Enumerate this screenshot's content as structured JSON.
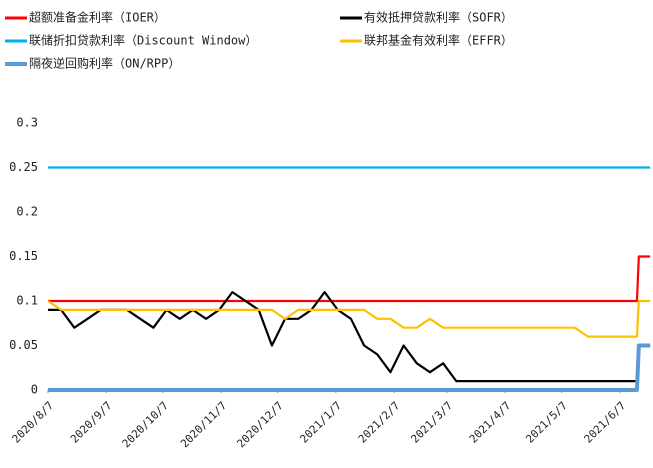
{
  "chart_data": {
    "type": "line",
    "x": [
      "2020/8/7",
      "2020/8/14",
      "2020/8/21",
      "2020/8/28",
      "2020/9/4",
      "2020/9/11",
      "2020/9/18",
      "2020/9/25",
      "2020/10/2",
      "2020/10/9",
      "2020/10/16",
      "2020/10/23",
      "2020/10/30",
      "2020/11/6",
      "2020/11/13",
      "2020/11/20",
      "2020/11/27",
      "2020/12/4",
      "2020/12/11",
      "2020/12/18",
      "2020/12/25",
      "2021/1/1",
      "2021/1/8",
      "2021/1/15",
      "2021/1/22",
      "2021/1/29",
      "2021/2/5",
      "2021/2/12",
      "2021/2/19",
      "2021/2/26",
      "2021/3/5",
      "2021/3/12",
      "2021/3/19",
      "2021/3/26",
      "2021/4/2",
      "2021/4/9",
      "2021/4/16",
      "2021/4/23",
      "2021/4/30",
      "2021/5/7",
      "2021/5/14",
      "2021/5/21",
      "2021/5/28",
      "2021/6/4",
      "2021/6/11",
      "2021/6/16",
      "2021/6/17",
      "2021/6/23"
    ],
    "series": [
      {
        "name": "超额准备金利率（IOER）",
        "color": "#ff0000",
        "values": [
          0.1,
          0.1,
          0.1,
          0.1,
          0.1,
          0.1,
          0.1,
          0.1,
          0.1,
          0.1,
          0.1,
          0.1,
          0.1,
          0.1,
          0.1,
          0.1,
          0.1,
          0.1,
          0.1,
          0.1,
          0.1,
          0.1,
          0.1,
          0.1,
          0.1,
          0.1,
          0.1,
          0.1,
          0.1,
          0.1,
          0.1,
          0.1,
          0.1,
          0.1,
          0.1,
          0.1,
          0.1,
          0.1,
          0.1,
          0.1,
          0.1,
          0.1,
          0.1,
          0.1,
          0.1,
          0.1,
          0.15,
          0.15
        ]
      },
      {
        "name": "有效抵押贷款利率（SOFR）",
        "color": "#000000",
        "values": [
          0.09,
          0.09,
          0.07,
          0.08,
          0.09,
          0.09,
          0.09,
          0.08,
          0.07,
          0.09,
          0.08,
          0.09,
          0.08,
          0.09,
          0.11,
          0.1,
          0.09,
          0.05,
          0.08,
          0.08,
          0.09,
          0.11,
          0.09,
          0.08,
          0.05,
          0.04,
          0.02,
          0.05,
          0.03,
          0.02,
          0.03,
          0.01,
          0.01,
          0.01,
          0.01,
          0.01,
          0.01,
          0.01,
          0.01,
          0.01,
          0.01,
          0.01,
          0.01,
          0.01,
          0.01,
          0.01,
          0.05,
          0.05
        ]
      },
      {
        "name": "联储折扣贷款利率（Discount Window）",
        "color": "#00b0f0",
        "values": [
          0.25,
          0.25,
          0.25,
          0.25,
          0.25,
          0.25,
          0.25,
          0.25,
          0.25,
          0.25,
          0.25,
          0.25,
          0.25,
          0.25,
          0.25,
          0.25,
          0.25,
          0.25,
          0.25,
          0.25,
          0.25,
          0.25,
          0.25,
          0.25,
          0.25,
          0.25,
          0.25,
          0.25,
          0.25,
          0.25,
          0.25,
          0.25,
          0.25,
          0.25,
          0.25,
          0.25,
          0.25,
          0.25,
          0.25,
          0.25,
          0.25,
          0.25,
          0.25,
          0.25,
          0.25,
          0.25,
          0.25,
          0.25
        ]
      },
      {
        "name": "联邦基金有效利率（EFFR）",
        "color": "#ffc000",
        "values": [
          0.1,
          0.09,
          0.09,
          0.09,
          0.09,
          0.09,
          0.09,
          0.09,
          0.09,
          0.09,
          0.09,
          0.09,
          0.09,
          0.09,
          0.09,
          0.09,
          0.09,
          0.09,
          0.08,
          0.09,
          0.09,
          0.09,
          0.09,
          0.09,
          0.09,
          0.08,
          0.08,
          0.07,
          0.07,
          0.08,
          0.07,
          0.07,
          0.07,
          0.07,
          0.07,
          0.07,
          0.07,
          0.07,
          0.07,
          0.07,
          0.07,
          0.06,
          0.06,
          0.06,
          0.06,
          0.06,
          0.1,
          0.1
        ]
      },
      {
        "name": "隔夜逆回购利率（ON/RPP）",
        "color": "#5b9bd5",
        "values": [
          0,
          0,
          0,
          0,
          0,
          0,
          0,
          0,
          0,
          0,
          0,
          0,
          0,
          0,
          0,
          0,
          0,
          0,
          0,
          0,
          0,
          0,
          0,
          0,
          0,
          0,
          0,
          0,
          0,
          0,
          0,
          0,
          0,
          0,
          0,
          0,
          0,
          0,
          0,
          0,
          0,
          0,
          0,
          0,
          0,
          0,
          0.05,
          0.05
        ]
      }
    ],
    "xlim": [
      "2020/8/7",
      "2021/6/24"
    ],
    "xticks": [
      "2020/8/7",
      "2020/9/7",
      "2020/10/7",
      "2020/11/7",
      "2020/12/7",
      "2021/1/7",
      "2021/2/7",
      "2021/3/7",
      "2021/4/7",
      "2021/5/7",
      "2021/6/7"
    ],
    "ylim": [
      0,
      0.3
    ],
    "yticks": [
      0,
      0.05,
      0.1,
      0.15,
      0.2,
      0.25,
      0.3
    ],
    "grid": false
  }
}
